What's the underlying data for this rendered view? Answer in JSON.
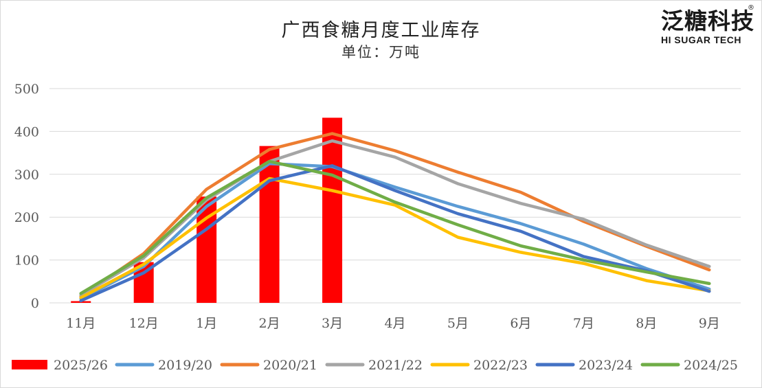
{
  "title": "广西食糖月度工业库存",
  "subtitle": "单位：万吨",
  "logo": {
    "cn": "泛糖科技",
    "en": "HI SUGAR TECH",
    "mark": "®"
  },
  "colors": {
    "2025/26": "#ff0000",
    "2019/20": "#5b9bd5",
    "2020/21": "#ed7d31",
    "2021/22": "#a5a5a5",
    "2022/23": "#ffc000",
    "2023/24": "#4472c4",
    "2024/25": "#70ad47",
    "grid": "#d9d9d9",
    "axis_text": "#595959"
  },
  "chart_data": {
    "type": "bar+line",
    "title": "广西食糖月度工业库存",
    "subtitle": "单位：万吨",
    "categories": [
      "11月",
      "12月",
      "1月",
      "2月",
      "3月",
      "4月",
      "5月",
      "6月",
      "7月",
      "8月",
      "9月"
    ],
    "ylim": [
      0,
      500
    ],
    "yticks": [
      0,
      100,
      200,
      300,
      400,
      500
    ],
    "grid": true,
    "legend_position": "bottom",
    "bar_series": {
      "name": "2025/26",
      "values": [
        4,
        95,
        248,
        366,
        432
      ]
    },
    "line_series": [
      {
        "name": "2019/20",
        "values": [
          10,
          85,
          225,
          325,
          318,
          270,
          225,
          185,
          137,
          80,
          32
        ]
      },
      {
        "name": "2020/21",
        "values": [
          15,
          115,
          265,
          358,
          395,
          355,
          305,
          258,
          190,
          132,
          77
        ]
      },
      {
        "name": "2021/22",
        "values": [
          18,
          105,
          240,
          330,
          378,
          340,
          278,
          232,
          195,
          135,
          85
        ]
      },
      {
        "name": "2022/23",
        "values": [
          12,
          90,
          198,
          290,
          262,
          228,
          153,
          118,
          92,
          52,
          28
        ]
      },
      {
        "name": "2023/24",
        "values": [
          5,
          70,
          172,
          285,
          320,
          262,
          208,
          167,
          108,
          75,
          27
        ]
      },
      {
        "name": "2024/25",
        "values": [
          22,
          110,
          245,
          330,
          298,
          235,
          182,
          133,
          100,
          72,
          45
        ]
      }
    ]
  }
}
